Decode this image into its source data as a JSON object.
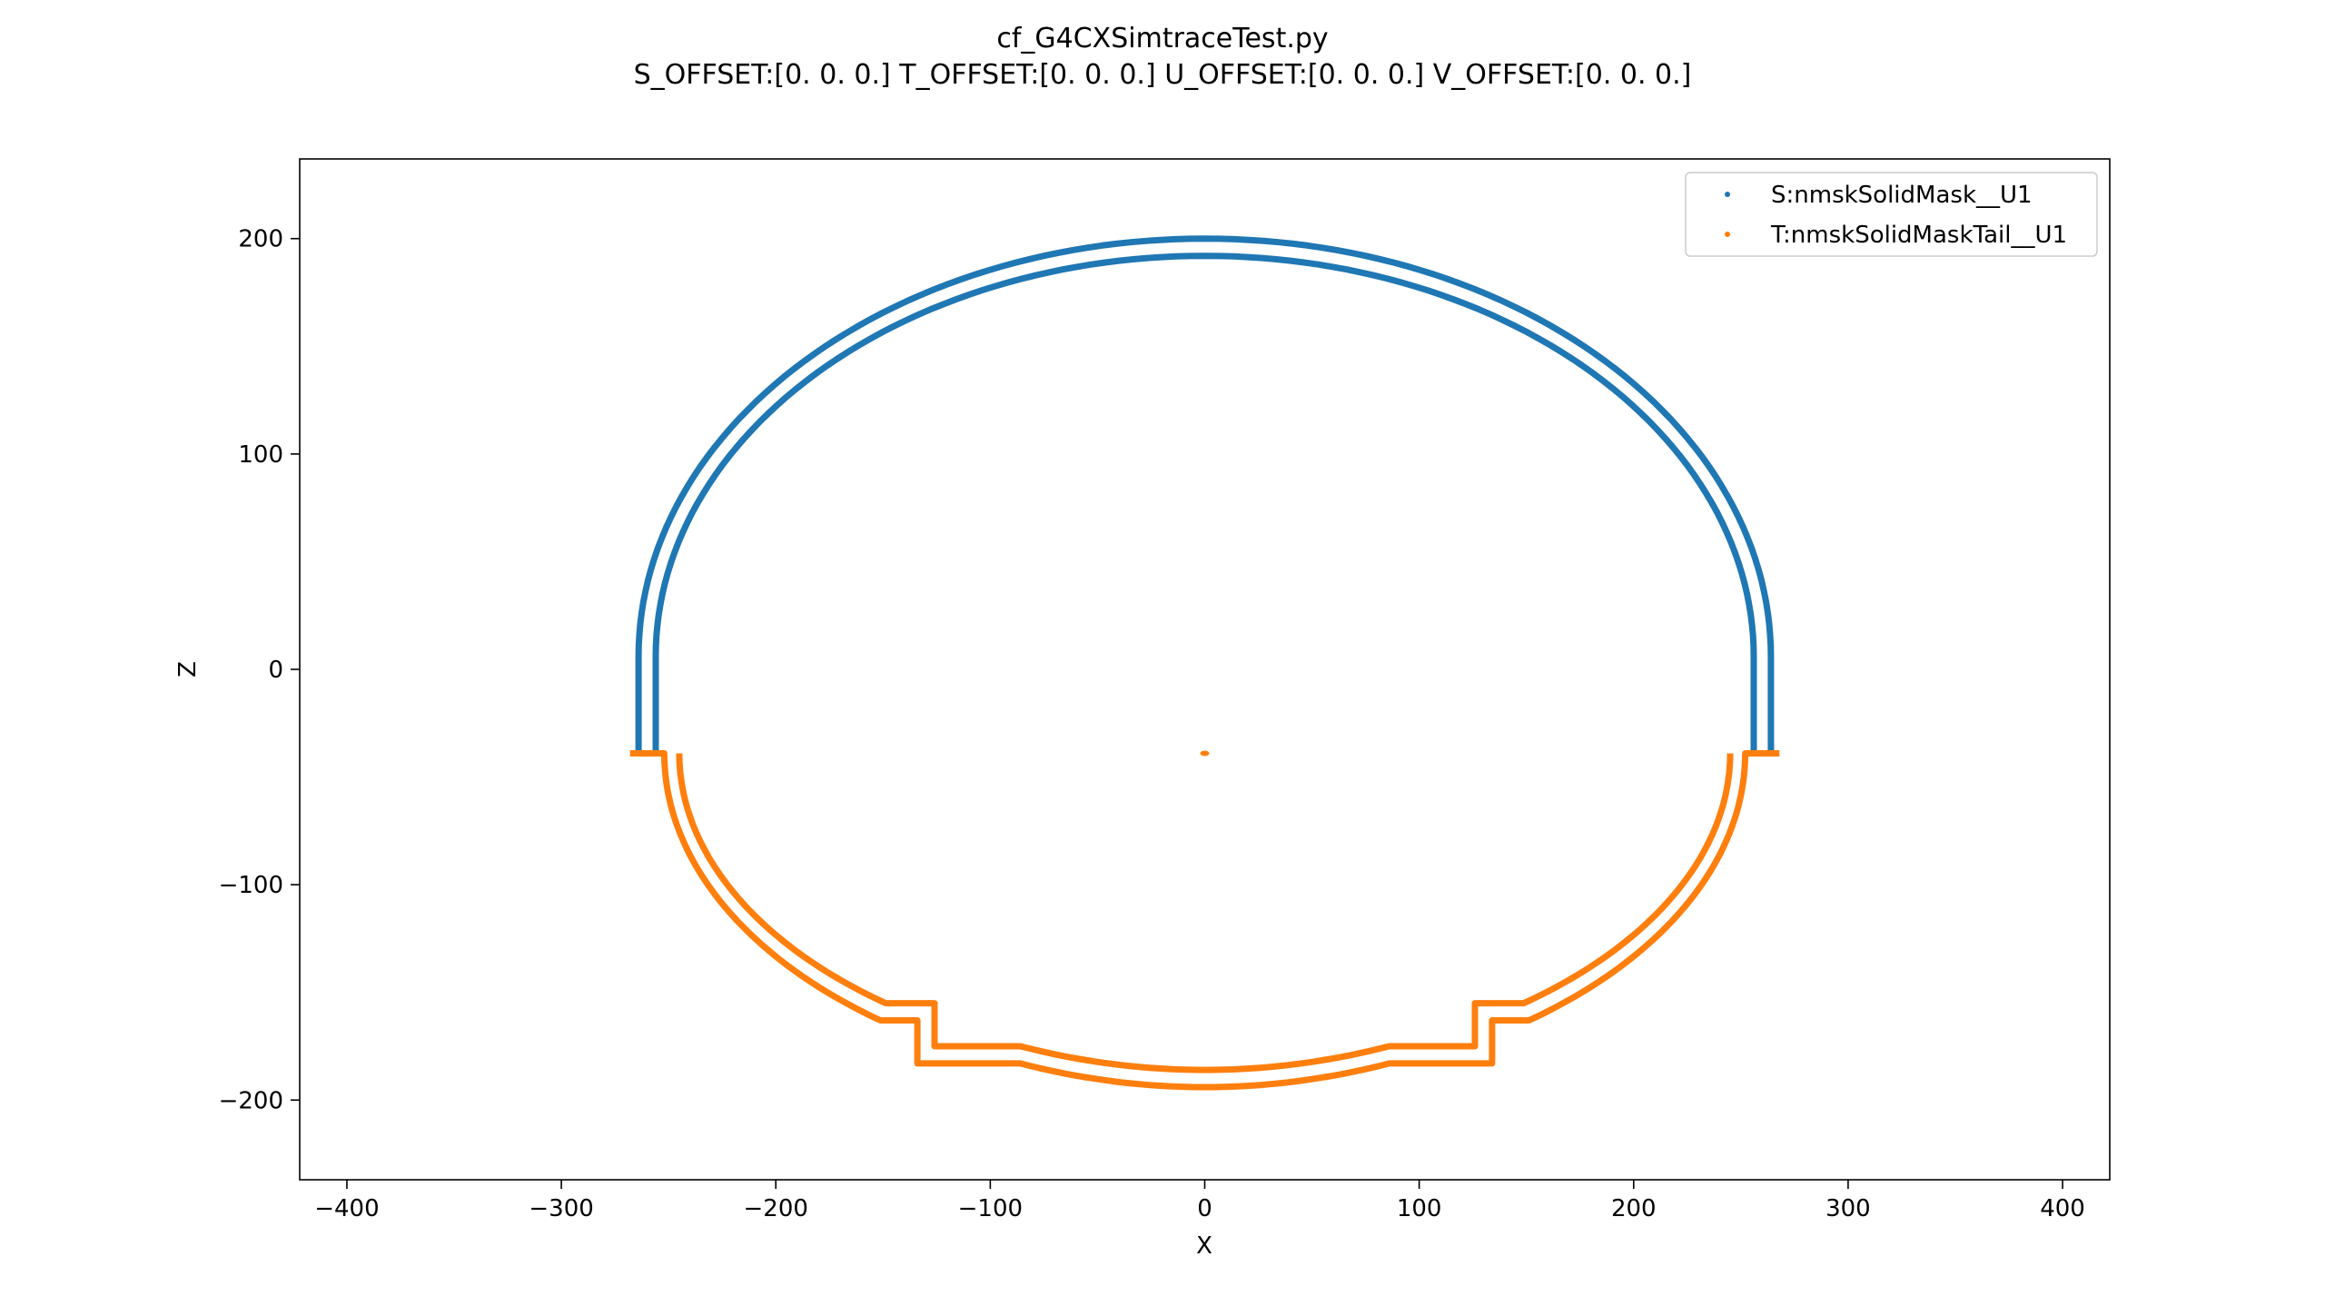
{
  "chart_data": {
    "type": "scatter",
    "title": "cf_G4CXSimtraceTest.py",
    "subtitle": "S_OFFSET:[0. 0. 0.] T_OFFSET:[0. 0. 0.] U_OFFSET:[0. 0. 0.] V_OFFSET:[0. 0. 0.]",
    "xlabel": "X",
    "ylabel": "Z",
    "xlim": [
      -422,
      422
    ],
    "ylim": [
      -237,
      237
    ],
    "xticks": [
      -400,
      -300,
      -200,
      -100,
      0,
      100,
      200,
      300,
      400
    ],
    "xtick_labels": [
      "−400",
      "−300",
      "−200",
      "−100",
      "0",
      "100",
      "200",
      "300",
      "400"
    ],
    "yticks": [
      -200,
      -100,
      0,
      100,
      200
    ],
    "ytick_labels": [
      "−200",
      "−100",
      "0",
      "100",
      "200"
    ],
    "grid": false,
    "legend_position": "top-right",
    "series": [
      {
        "name": "S:nmskSolidMask__U1",
        "color": "#1f77b4",
        "outlines": [
          {
            "shape": "arch",
            "cap": {
              "semi_axis_x": 264,
              "semi_axis_z": 194,
              "center_z": 6
            },
            "wall_x": 264,
            "wall_z_range": [
              -39,
              6
            ]
          },
          {
            "shape": "arch",
            "cap": {
              "semi_axis_x": 256,
              "semi_axis_z": 186,
              "center_z": 6
            },
            "wall_x": 256,
            "wall_z_range": [
              -39,
              6
            ]
          }
        ]
      },
      {
        "name": "T:nmskSolidMaskTail__U1",
        "color": "#ff7f0e",
        "outlines": [
          {
            "shape": "tail",
            "rim_z": -39,
            "rim_x": [
              -268,
              268
            ],
            "bowl": {
              "semi_axis_x": 252,
              "semi_axis_z": 155
            },
            "step_x": 134,
            "step_z": [
              -163,
              -183
            ],
            "flat_x": 86,
            "flat_z": -183,
            "bottom_z": -194
          },
          {
            "shape": "tail",
            "rim_z": -39,
            "bowl": {
              "semi_axis_x": 245,
              "semi_axis_z": 146
            },
            "step_x": 126,
            "step_z": [
              -155,
              -175
            ],
            "flat_x": 86,
            "flat_z": -175,
            "bottom_z": -186
          },
          {
            "shape": "point",
            "x": 0,
            "z": -39
          }
        ]
      }
    ]
  }
}
